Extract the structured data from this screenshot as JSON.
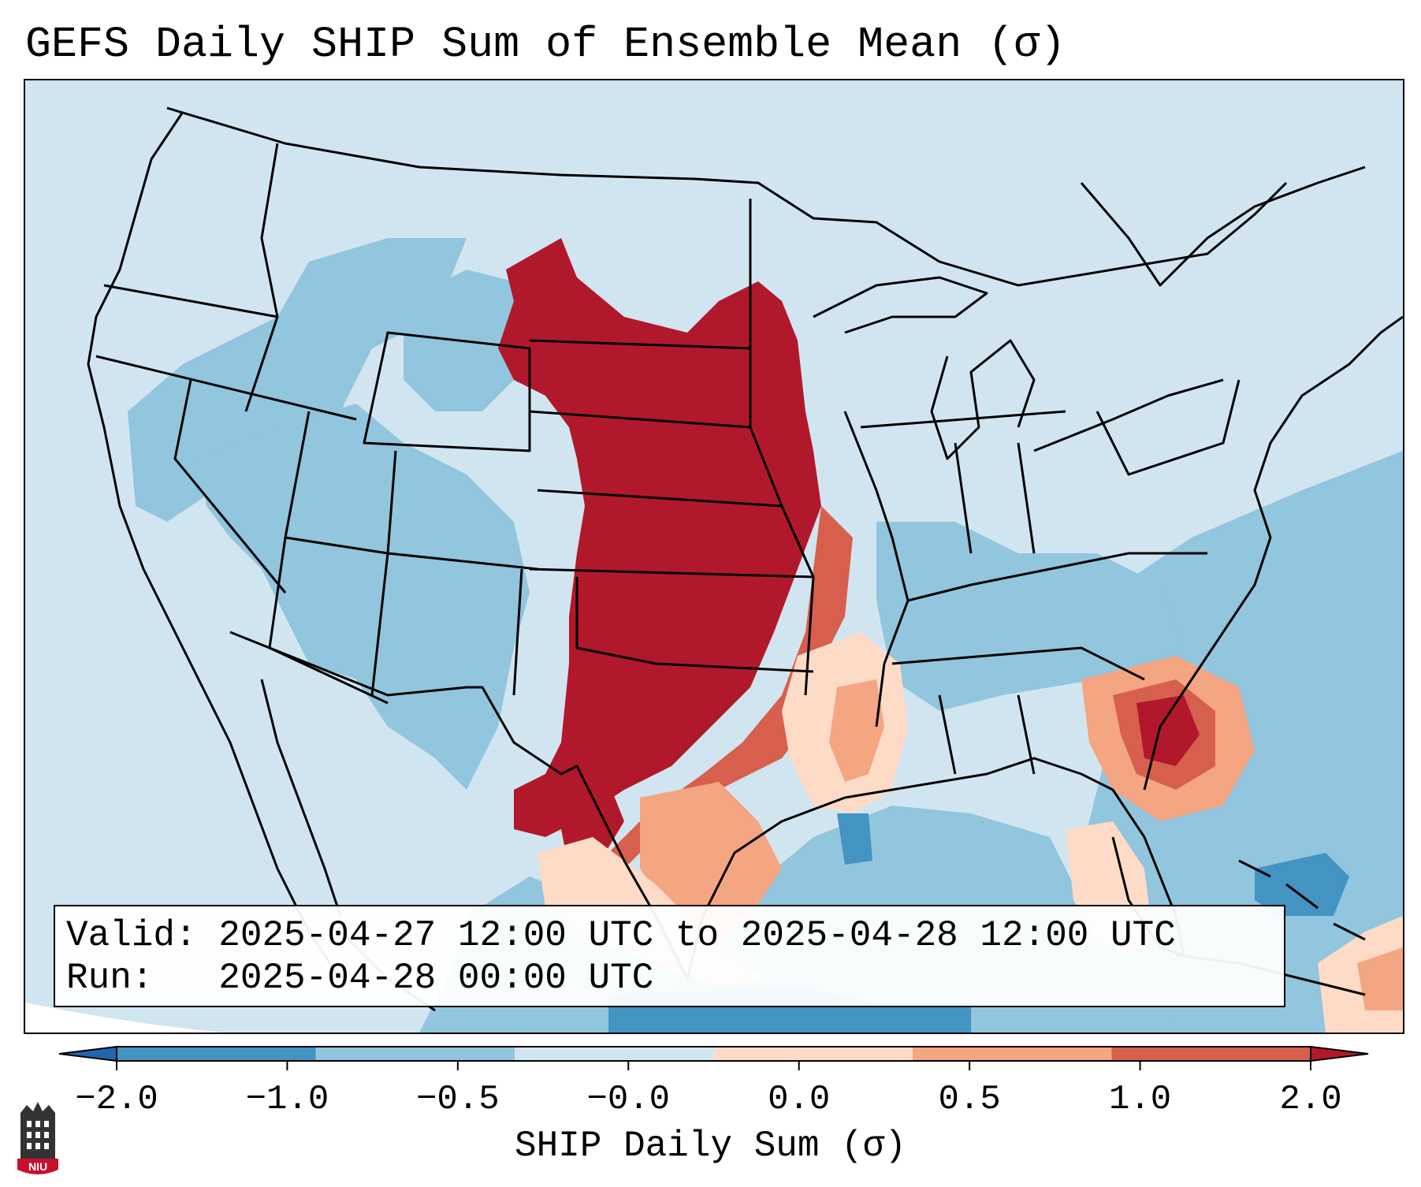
{
  "title": "GEFS Daily SHIP Sum of Ensemble Mean (σ)",
  "info": {
    "valid_line": "Valid: 2025-04-27 12:00 UTC to 2025-04-28 12:00 UTC",
    "run_line": "Run:   2025-04-28 00:00 UTC"
  },
  "colorbar": {
    "label": "SHIP Daily Sum (σ)",
    "ticks": [
      "−2.0",
      "−1.0",
      "−0.5",
      "−0.0",
      "0.0",
      "0.5",
      "1.0",
      "2.0"
    ],
    "bin_colors": [
      "#4393c3",
      "#92c5de",
      "#d1e5f0",
      "#fddbc7",
      "#f4a582",
      "#d6604d"
    ],
    "under_color": "#2166ac",
    "over_color": "#b2182b"
  },
  "colors": {
    "background": "#d1e5f0",
    "weak_negative": "#92c5de",
    "strong_negative": "#4393c3",
    "weak_positive": "#fddbc7",
    "moderate_positive": "#f4a582",
    "strong_positive": "#d6604d",
    "extreme_positive": "#b2182b",
    "boundaries": "#000000"
  },
  "logo": {
    "name": "niu-logo",
    "text": "NIU",
    "color": "#c8102e"
  }
}
